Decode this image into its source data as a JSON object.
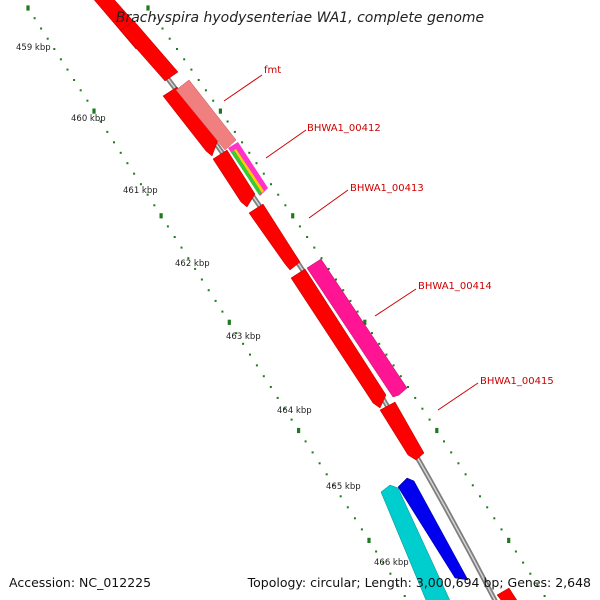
{
  "title": "Brachyspira hyodysenteriae WA1, complete genome",
  "footer": {
    "accession": "Accession: NC_012225",
    "summary": "Topology: circular; Length: 3,000,694 bp; Genes: 2,648"
  },
  "scale": {
    "ticks": [
      "459 kbp",
      "460 kbp",
      "461 kbp",
      "462 kbp",
      "463 kbp",
      "464 kbp",
      "465 kbp",
      "466 kbp"
    ]
  },
  "gene_labels": [
    {
      "name": "fmt"
    },
    {
      "name": "BHWA1_00412"
    },
    {
      "name": "BHWA1_00413"
    },
    {
      "name": "BHWA1_00414"
    },
    {
      "name": "BHWA1_00415"
    }
  ],
  "colors": {
    "backbone": "#808080",
    "tick_dots": "#1d7a1d",
    "cds": "#ff0000",
    "trna_like": "#f08080",
    "feature_magenta": "#ff1493",
    "feature_cyan": "#00cdcd",
    "feature_blue": "#0000ee",
    "label_red": "#cc0000"
  }
}
